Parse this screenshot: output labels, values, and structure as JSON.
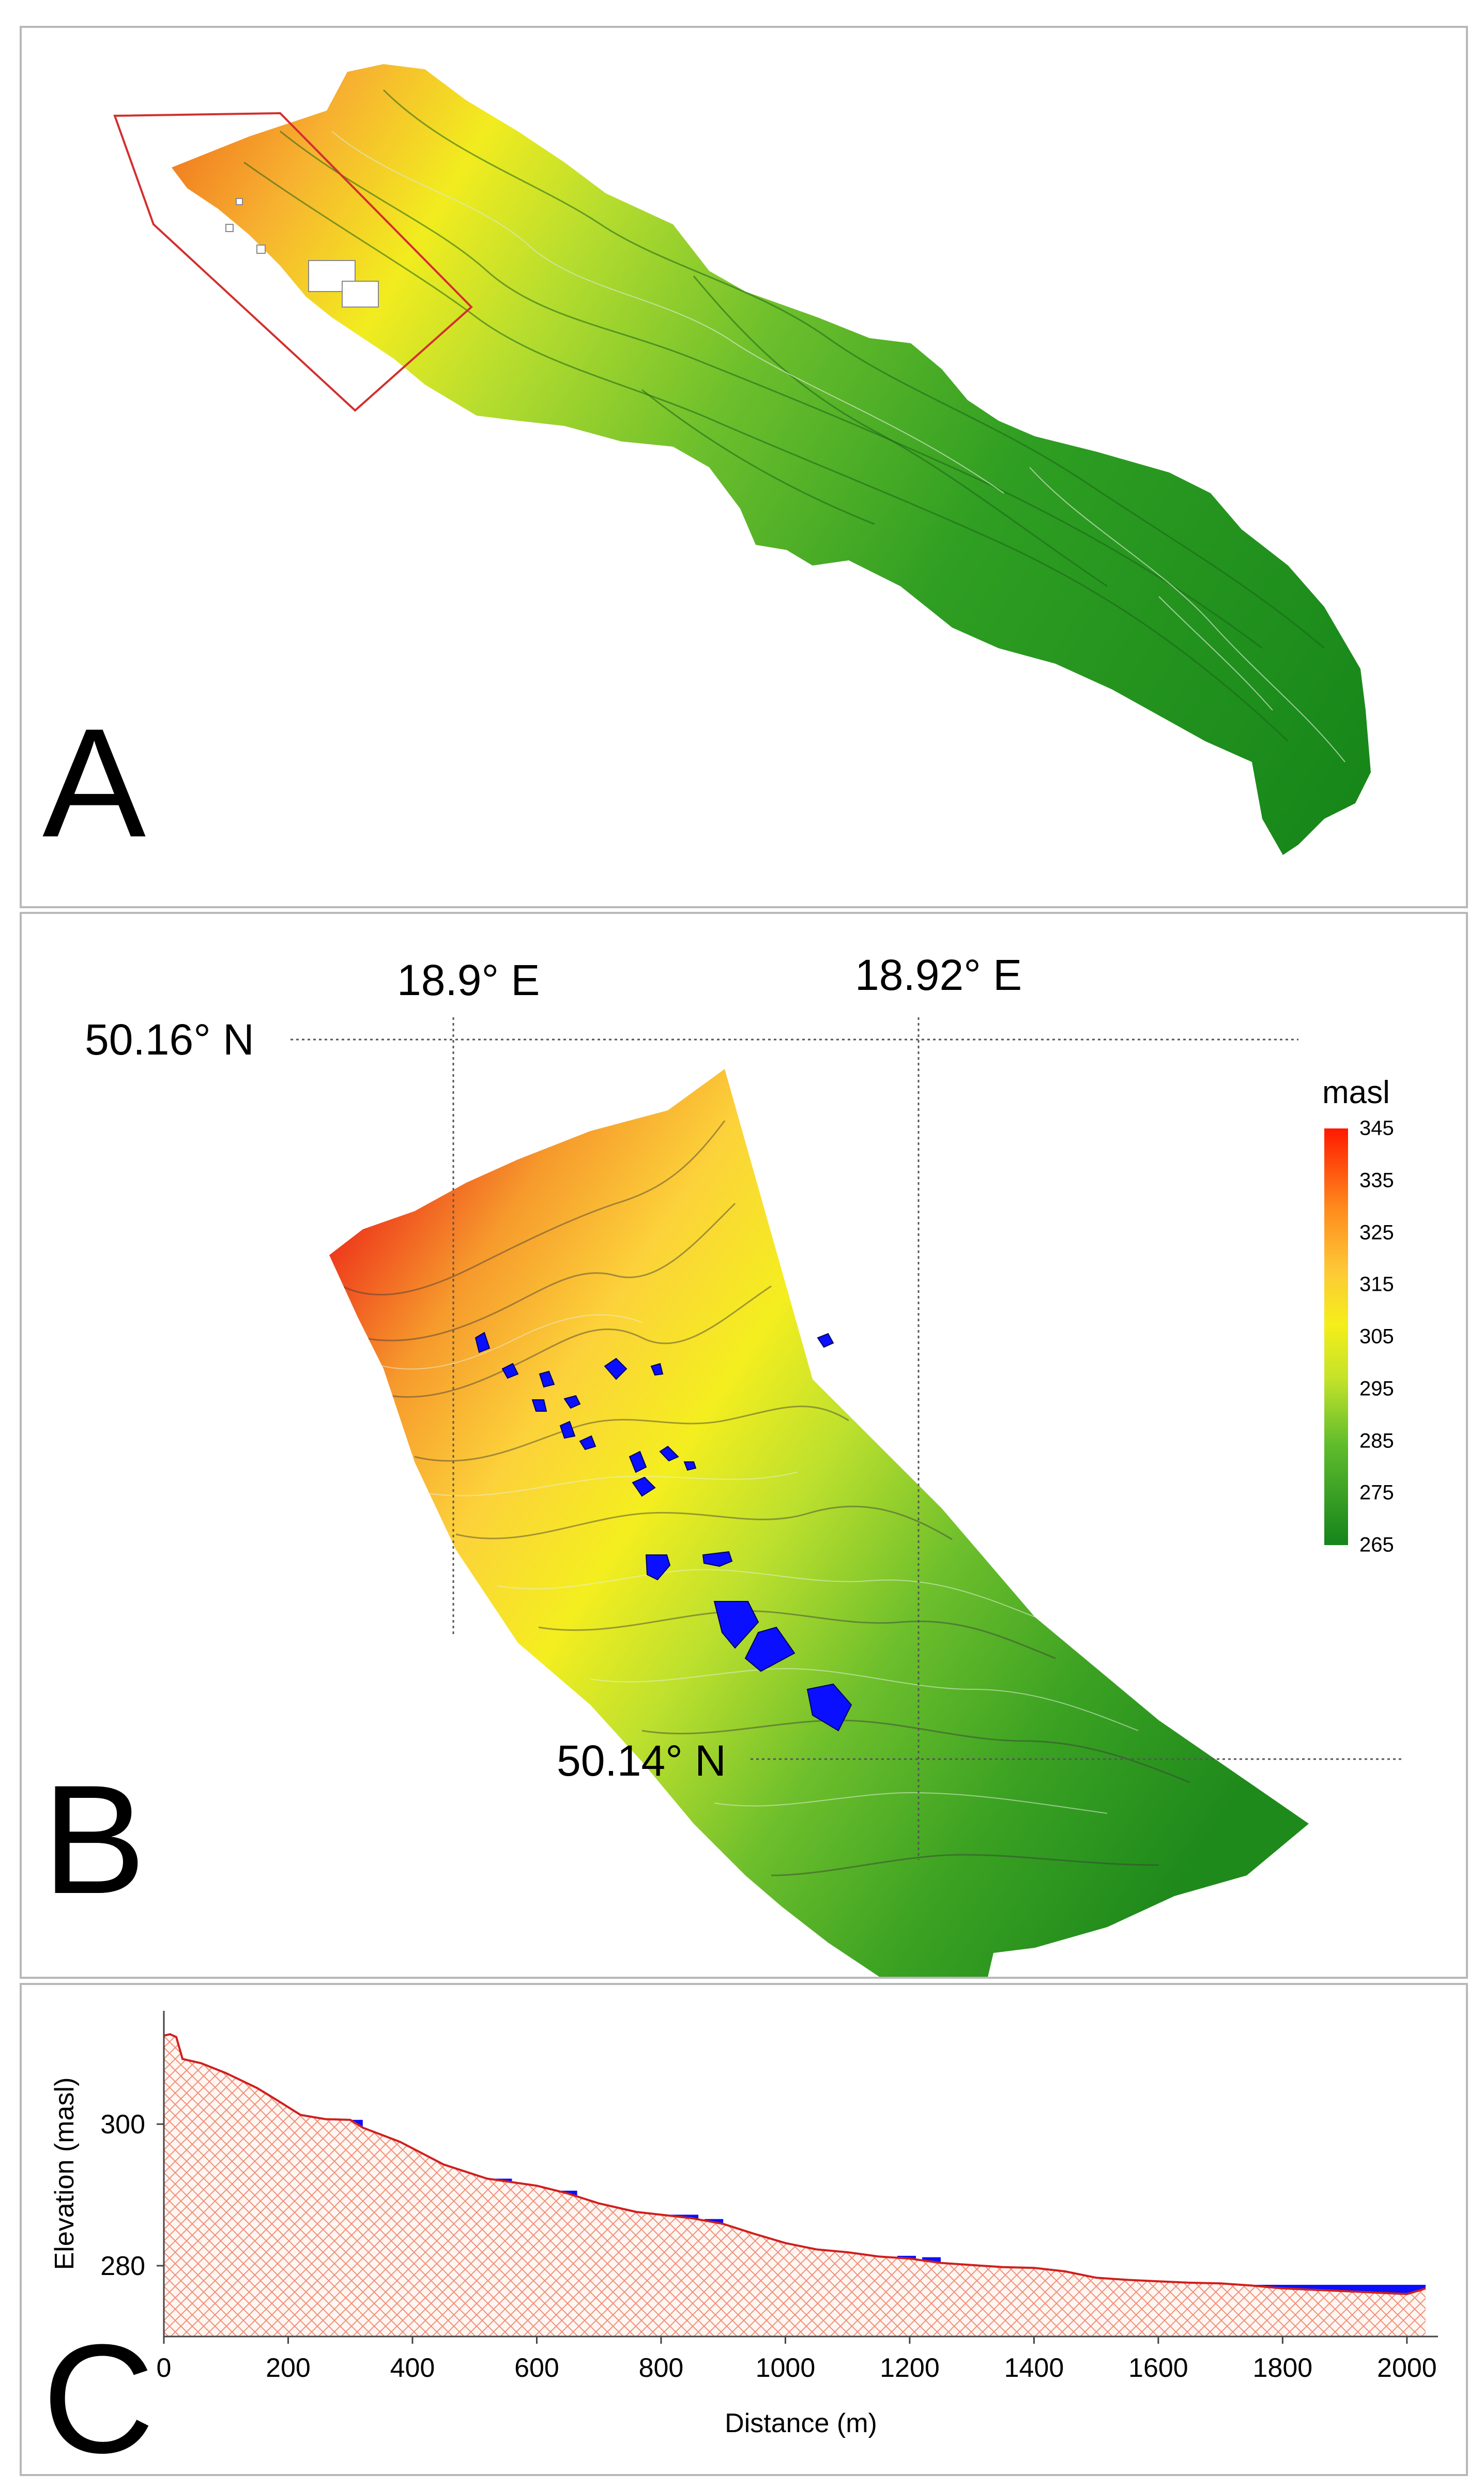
{
  "panels": {
    "a": {
      "letter": "A"
    },
    "b": {
      "letter": "B"
    },
    "c": {
      "letter": "C"
    }
  },
  "map_b": {
    "coordinates": {
      "lon_left": "18.9° E",
      "lon_right": "18.92° E",
      "lat_top": "50.16° N",
      "lat_bottom": "50.14° N"
    },
    "legend": {
      "title": "masl",
      "ticks": [
        "345",
        "335",
        "325",
        "315",
        "305",
        "295",
        "285",
        "275",
        "265"
      ],
      "colors": {
        "high": "#ff1a00",
        "mid": "#f5ee1a",
        "low": "#15841c"
      }
    },
    "water_color": "#0a10ff"
  },
  "chart_data": {
    "type": "area",
    "xlabel": "Distance (m)",
    "ylabel": "Elevation (masl)",
    "xlim": [
      0,
      2050
    ],
    "ylim": [
      270,
      316
    ],
    "xticks": [
      0,
      200,
      400,
      600,
      800,
      1000,
      1200,
      1400,
      1600,
      1800,
      2000
    ],
    "yticks": [
      280,
      300
    ],
    "terrain_profile": {
      "x": [
        0,
        10,
        20,
        30,
        60,
        100,
        150,
        180,
        220,
        260,
        300,
        320,
        380,
        450,
        520,
        560,
        600,
        650,
        700,
        760,
        800,
        850,
        900,
        950,
        1000,
        1050,
        1100,
        1150,
        1200,
        1250,
        1300,
        1350,
        1400,
        1450,
        1500,
        1550,
        1600,
        1650,
        1700,
        1750,
        1800,
        1850,
        1900,
        1950,
        2000,
        2020,
        2030
      ],
      "y": [
        312.5,
        312.7,
        312.3,
        309.2,
        308.6,
        307.2,
        305.1,
        303.5,
        301.3,
        300.7,
        300.6,
        299.5,
        297.5,
        294.3,
        292.3,
        291.8,
        291.3,
        290.2,
        288.8,
        287.6,
        287.2,
        286.7,
        285.9,
        284.5,
        283.2,
        282.3,
        281.9,
        281.3,
        281.0,
        280.4,
        280.1,
        279.8,
        279.7,
        279.2,
        278.3,
        278.0,
        277.8,
        277.6,
        277.5,
        277.2,
        276.8,
        276.6,
        276.4,
        276.2,
        276.0,
        276.5,
        276.8
      ]
    },
    "water_surface": [
      {
        "x": [
          170,
          210
        ],
        "y": [
          301.8,
          301.8
        ]
      },
      {
        "x": [
          250,
          320
        ],
        "y": [
          300.6,
          300.6
        ]
      },
      {
        "x": [
          530,
          560
        ],
        "y": [
          292.3,
          292.3
        ]
      },
      {
        "x": [
          640,
          665
        ],
        "y": [
          290.6,
          290.6
        ]
      },
      {
        "x": [
          810,
          860
        ],
        "y": [
          287.2,
          287.2
        ]
      },
      {
        "x": [
          870,
          900
        ],
        "y": [
          286.6,
          286.6
        ]
      },
      {
        "x": [
          1180,
          1210
        ],
        "y": [
          281.4,
          281.4
        ]
      },
      {
        "x": [
          1220,
          1250
        ],
        "y": [
          281.2,
          281.2
        ]
      },
      {
        "x": [
          1690,
          1700
        ],
        "y": [
          277.6,
          277.6
        ]
      },
      {
        "x": [
          1720,
          2030
        ],
        "y": [
          277.3,
          277.3
        ]
      }
    ],
    "terrain_color": "#f0907a",
    "water_color": "#0a10ff",
    "grid": false
  }
}
